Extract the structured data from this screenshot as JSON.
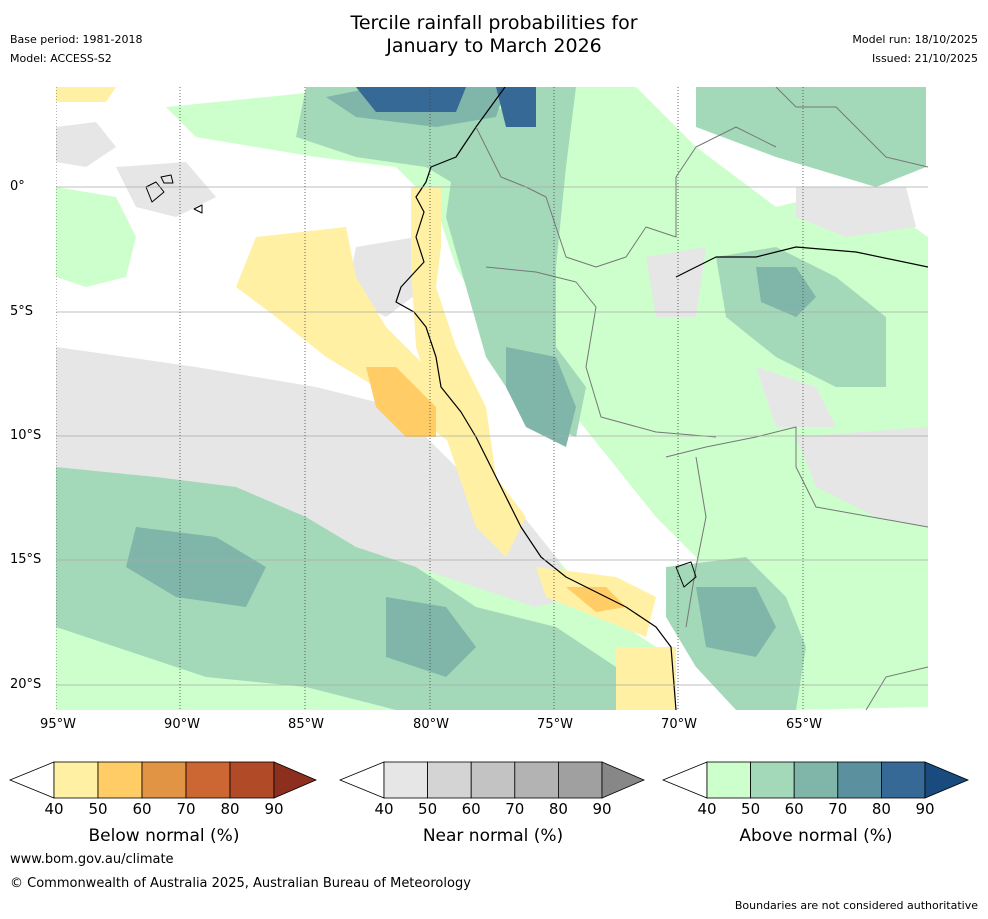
{
  "title_line1": "Tercile rainfall probabilities for",
  "title_line2": "January to March 2026",
  "base_period": "Base period: 1981-2018",
  "model": "Model: ACCESS-S2",
  "model_run": "Model run: 18/10/2025",
  "issued": "Issued: 21/10/2025",
  "lat_labels": [
    "0°",
    "5°S",
    "10°S",
    "15°S",
    "20°S"
  ],
  "lon_labels": [
    "95°W",
    "90°W",
    "85°W",
    "80°W",
    "75°W",
    "70°W",
    "65°W"
  ],
  "legends": [
    {
      "title": "Below normal (%)",
      "ticks": [
        "40",
        "50",
        "60",
        "70",
        "80",
        "90"
      ],
      "colors": [
        "#fff0a4",
        "#ffcc66",
        "#e09444",
        "#cc6633",
        "#b04a27",
        "#8c2f1f"
      ]
    },
    {
      "title": "Near normal (%)",
      "ticks": [
        "40",
        "50",
        "60",
        "70",
        "80",
        "90"
      ],
      "colors": [
        "#e6e6e6",
        "#d4d4d4",
        "#c3c3c3",
        "#b3b3b3",
        "#a0a0a0",
        "#878787"
      ]
    },
    {
      "title": "Above normal (%)",
      "ticks": [
        "40",
        "50",
        "60",
        "70",
        "80",
        "90"
      ],
      "colors": [
        "#ccffcc",
        "#a3d9b9",
        "#80b5aa",
        "#5b919e",
        "#366995",
        "#194b7f"
      ]
    }
  ],
  "website": "www.bom.gov.au/climate",
  "copyright": "© Commonwealth of Australia 2025, Australian Bureau of Meteorology",
  "disclaimer": "Boundaries are not considered authoritative"
}
